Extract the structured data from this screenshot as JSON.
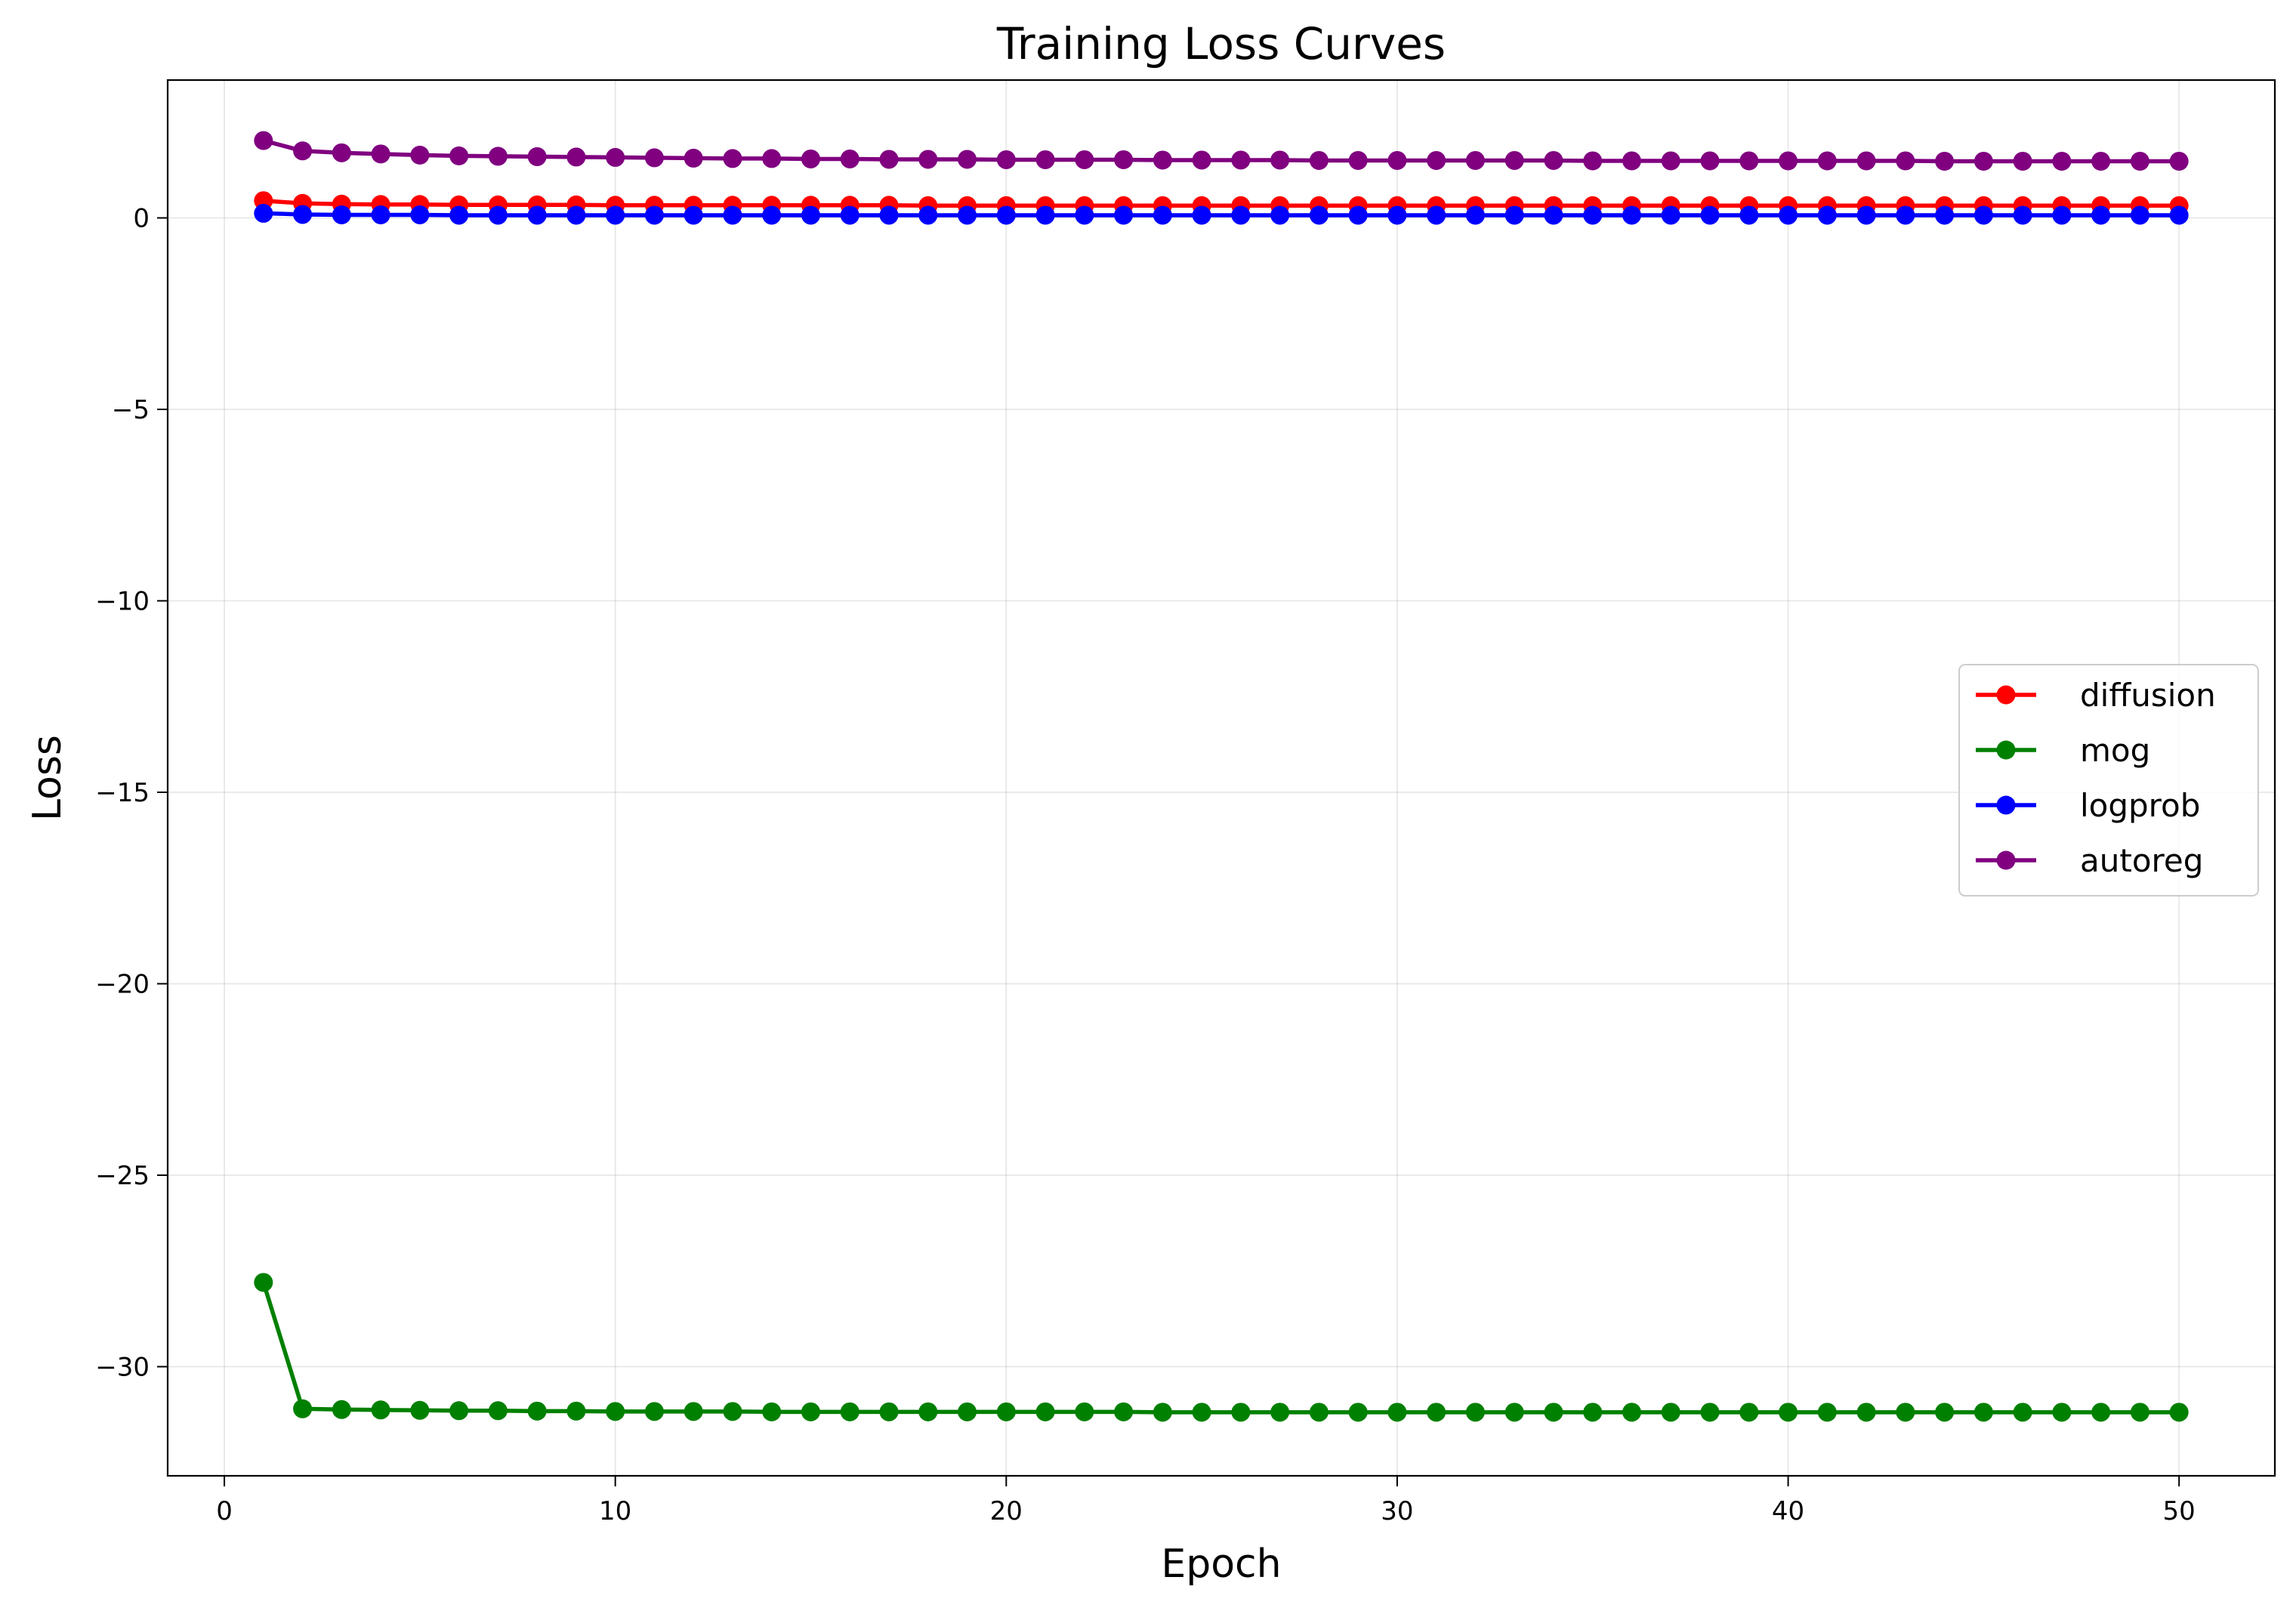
{
  "chart_data": {
    "type": "line",
    "title": "Training Loss Curves",
    "xlabel": "Epoch",
    "ylabel": "Loss",
    "xlim": [
      -1.45,
      52.45
    ],
    "ylim": [
      -32.85,
      3.6
    ],
    "xticks": [
      0,
      10,
      20,
      30,
      40,
      50
    ],
    "yticks": [
      0,
      -5,
      -10,
      -15,
      -20,
      -25,
      -30
    ],
    "grid": true,
    "legend_position": "center-right",
    "x": [
      1,
      2,
      3,
      4,
      5,
      6,
      7,
      8,
      9,
      10,
      11,
      12,
      13,
      14,
      15,
      16,
      17,
      18,
      19,
      20,
      21,
      22,
      23,
      24,
      25,
      26,
      27,
      28,
      29,
      30,
      31,
      32,
      33,
      34,
      35,
      36,
      37,
      38,
      39,
      40,
      41,
      42,
      43,
      44,
      45,
      46,
      47,
      48,
      49,
      50
    ],
    "series": [
      {
        "name": "diffusion",
        "color": "#ff0000",
        "values": [
          0.45,
          0.38,
          0.36,
          0.35,
          0.35,
          0.34,
          0.34,
          0.34,
          0.34,
          0.33,
          0.33,
          0.33,
          0.33,
          0.33,
          0.33,
          0.33,
          0.33,
          0.32,
          0.32,
          0.32,
          0.32,
          0.32,
          0.32,
          0.32,
          0.32,
          0.32,
          0.32,
          0.32,
          0.32,
          0.32,
          0.32,
          0.32,
          0.32,
          0.32,
          0.32,
          0.32,
          0.32,
          0.32,
          0.32,
          0.32,
          0.32,
          0.32,
          0.32,
          0.32,
          0.32,
          0.32,
          0.32,
          0.32,
          0.32,
          0.32
        ]
      },
      {
        "name": "mog",
        "color": "#008000",
        "values": [
          -27.8,
          -31.1,
          -31.12,
          -31.13,
          -31.14,
          -31.15,
          -31.15,
          -31.16,
          -31.16,
          -31.17,
          -31.17,
          -31.17,
          -31.17,
          -31.18,
          -31.18,
          -31.18,
          -31.18,
          -31.18,
          -31.18,
          -31.18,
          -31.18,
          -31.18,
          -31.18,
          -31.19,
          -31.19,
          -31.19,
          -31.19,
          -31.19,
          -31.19,
          -31.19,
          -31.19,
          -31.19,
          -31.19,
          -31.19,
          -31.19,
          -31.19,
          -31.19,
          -31.19,
          -31.19,
          -31.19,
          -31.19,
          -31.19,
          -31.19,
          -31.19,
          -31.19,
          -31.19,
          -31.19,
          -31.19,
          -31.19,
          -31.19
        ]
      },
      {
        "name": "logprob",
        "color": "#0000ff",
        "values": [
          0.12,
          0.09,
          0.08,
          0.08,
          0.08,
          0.07,
          0.07,
          0.07,
          0.07,
          0.07,
          0.07,
          0.07,
          0.07,
          0.07,
          0.07,
          0.07,
          0.07,
          0.07,
          0.07,
          0.07,
          0.07,
          0.07,
          0.07,
          0.07,
          0.07,
          0.07,
          0.07,
          0.07,
          0.07,
          0.07,
          0.07,
          0.07,
          0.07,
          0.07,
          0.07,
          0.07,
          0.07,
          0.07,
          0.07,
          0.07,
          0.07,
          0.07,
          0.07,
          0.07,
          0.07,
          0.07,
          0.07,
          0.07,
          0.07,
          0.07
        ]
      },
      {
        "name": "autoreg",
        "color": "#800080",
        "values": [
          2.02,
          1.75,
          1.7,
          1.67,
          1.64,
          1.62,
          1.61,
          1.6,
          1.59,
          1.58,
          1.57,
          1.56,
          1.55,
          1.55,
          1.54,
          1.54,
          1.53,
          1.53,
          1.53,
          1.52,
          1.52,
          1.52,
          1.52,
          1.51,
          1.51,
          1.51,
          1.51,
          1.5,
          1.5,
          1.5,
          1.5,
          1.5,
          1.5,
          1.5,
          1.49,
          1.49,
          1.49,
          1.49,
          1.49,
          1.49,
          1.49,
          1.49,
          1.49,
          1.48,
          1.48,
          1.48,
          1.48,
          1.48,
          1.48,
          1.48
        ]
      }
    ]
  }
}
